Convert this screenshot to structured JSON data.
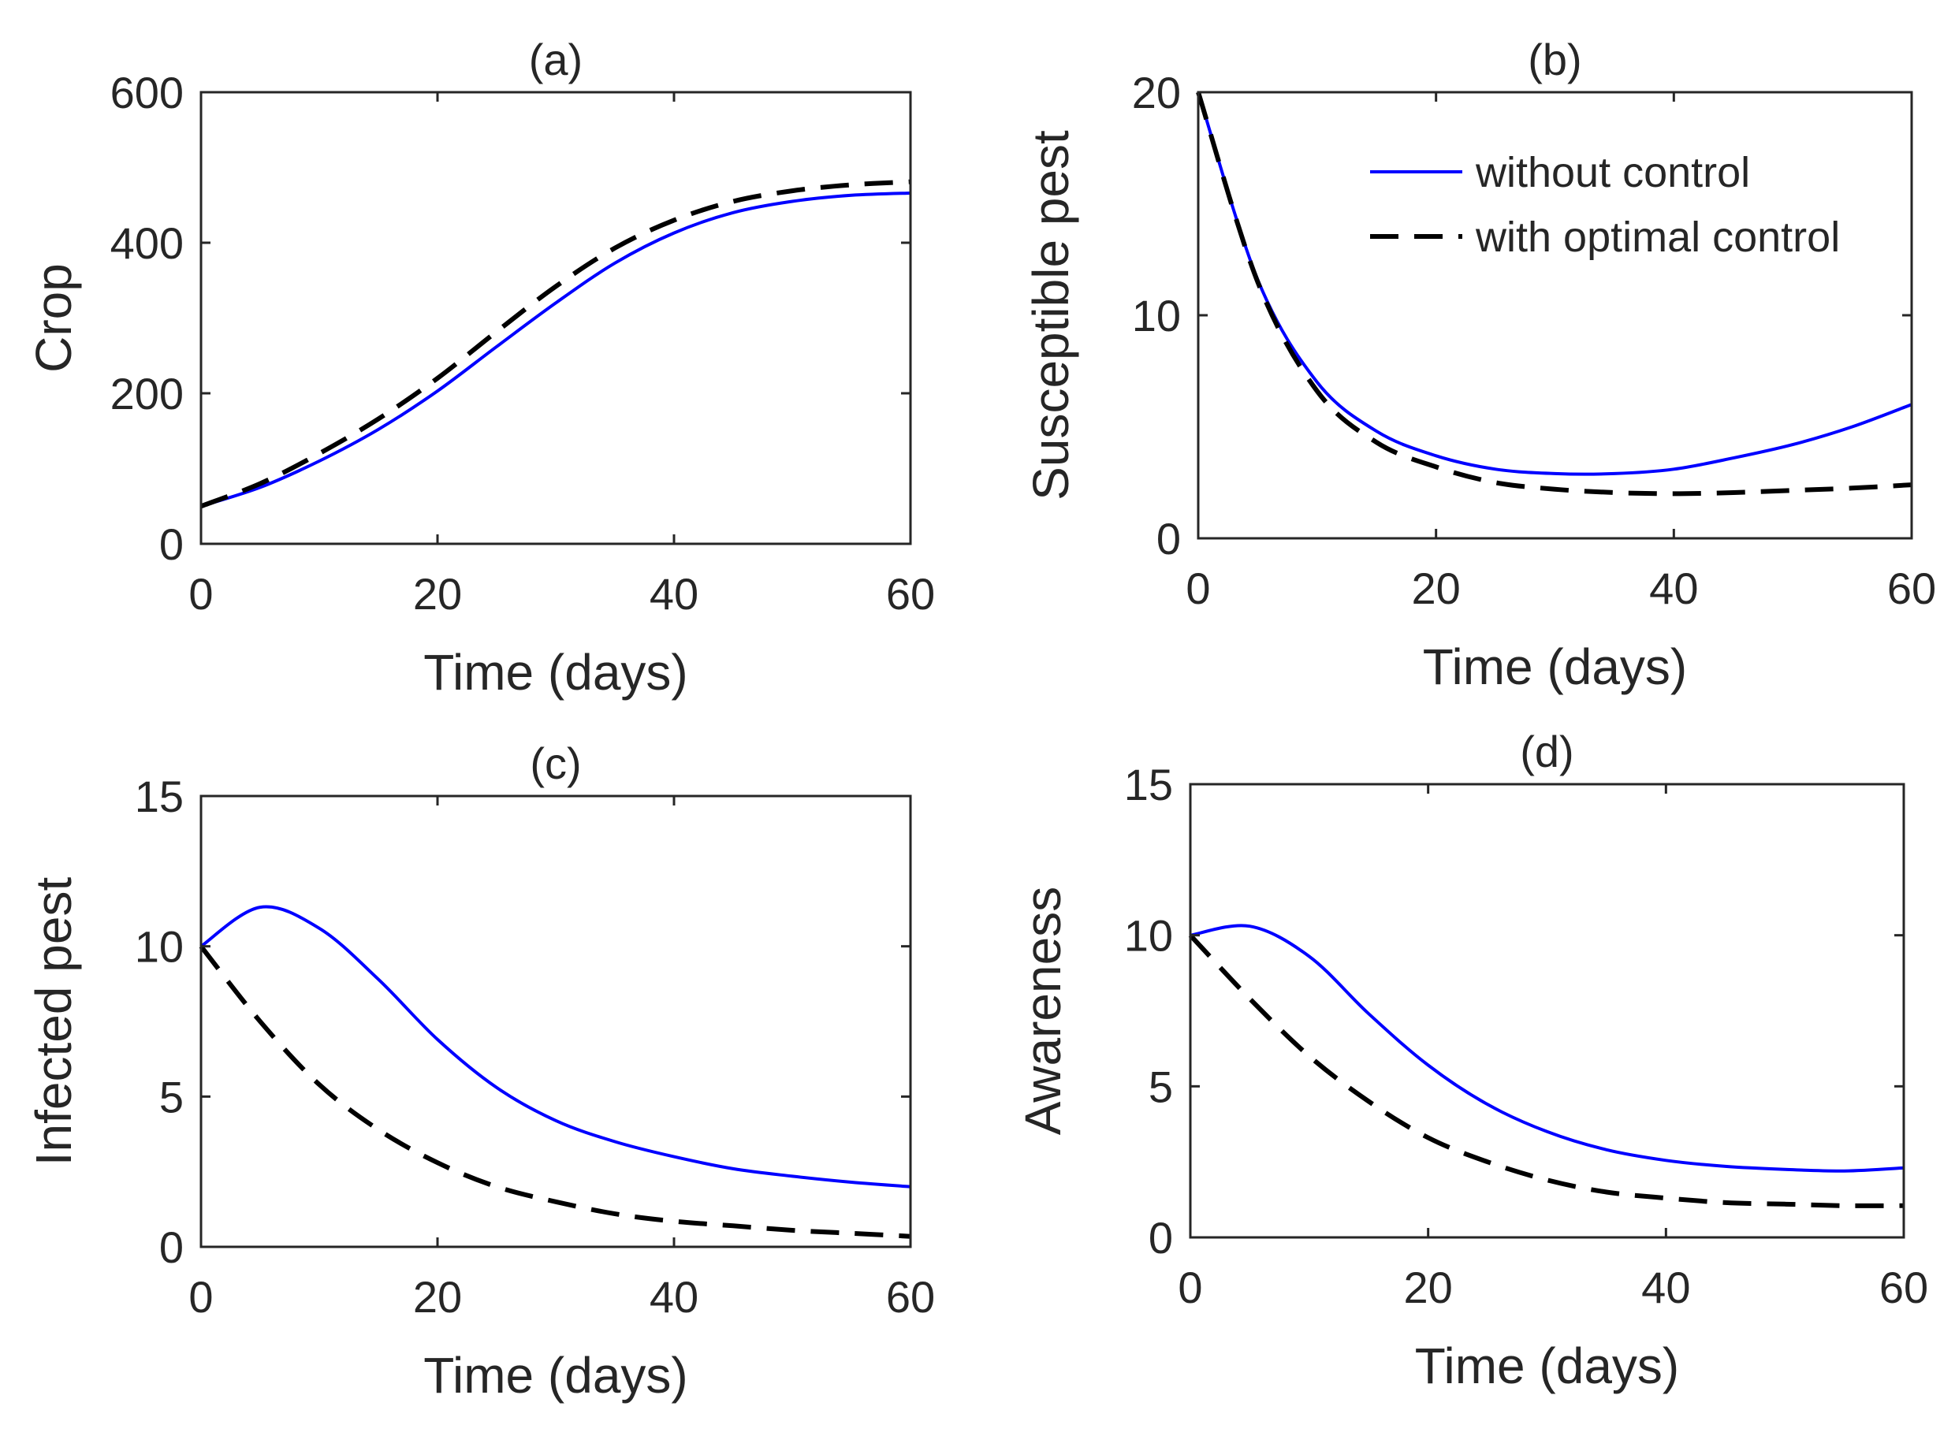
{
  "figure": {
    "legend": {
      "placement": "top-right of panel (b)",
      "entries": [
        {
          "label": "without control",
          "color": "#0000ff",
          "dash": "solid"
        },
        {
          "label": "with optimal control",
          "color": "#000000",
          "dash": "dashed"
        }
      ]
    }
  },
  "chart_data": [
    {
      "type": "line",
      "title": "(a)",
      "xlabel": "Time (days)",
      "ylabel": "Crop",
      "xlim": [
        0,
        60
      ],
      "ylim": [
        0,
        600
      ],
      "xticks": [
        "0",
        "20",
        "40",
        "60"
      ],
      "yticks": [
        "0",
        "200",
        "400",
        "600"
      ],
      "x": [
        0,
        5,
        10,
        15,
        20,
        25,
        30,
        35,
        40,
        45,
        50,
        55,
        60
      ],
      "series": [
        {
          "name": "without control",
          "color": "#0000ff",
          "dash": "solid",
          "values": [
            50,
            75,
            110,
            152,
            203,
            262,
            320,
            373,
            413,
            440,
            455,
            463,
            466
          ]
        },
        {
          "name": "with optimal control",
          "color": "#000000",
          "dash": "dashed",
          "values": [
            50,
            80,
            120,
            166,
            220,
            282,
            342,
            393,
            430,
            455,
            469,
            477,
            481
          ]
        }
      ]
    },
    {
      "type": "line",
      "title": "(b)",
      "xlabel": "Time (days)",
      "ylabel": "Susceptible pest",
      "xlim": [
        0,
        60
      ],
      "ylim": [
        0,
        20
      ],
      "xticks": [
        "0",
        "20",
        "40",
        "60"
      ],
      "yticks": [
        "0",
        "10",
        "20"
      ],
      "x": [
        0,
        5,
        10,
        15,
        20,
        25,
        30,
        35,
        40,
        45,
        50,
        55,
        60
      ],
      "series": [
        {
          "name": "without control",
          "color": "#0000ff",
          "dash": "solid",
          "values": [
            20,
            11.6,
            7.0,
            4.8,
            3.7,
            3.1,
            2.9,
            2.9,
            3.1,
            3.6,
            4.2,
            5.0,
            6.0
          ]
        },
        {
          "name": "with optimal control",
          "color": "#000000",
          "dash": "dashed",
          "values": [
            20,
            11.5,
            6.6,
            4.3,
            3.2,
            2.5,
            2.2,
            2.05,
            2.0,
            2.05,
            2.15,
            2.25,
            2.4
          ]
        }
      ]
    },
    {
      "type": "line",
      "title": "(c)",
      "xlabel": "Time (days)",
      "ylabel": "Infected pest",
      "xlim": [
        0,
        60
      ],
      "ylim": [
        0,
        15
      ],
      "xticks": [
        "0",
        "20",
        "40",
        "60"
      ],
      "yticks": [
        "0",
        "5",
        "10",
        "15"
      ],
      "x": [
        0,
        5,
        10,
        15,
        20,
        25,
        30,
        35,
        40,
        45,
        50,
        55,
        60
      ],
      "series": [
        {
          "name": "without control",
          "color": "#0000ff",
          "dash": "solid",
          "values": [
            10,
            11.3,
            10.6,
            8.9,
            6.9,
            5.3,
            4.2,
            3.5,
            3.0,
            2.6,
            2.35,
            2.15,
            2.0
          ]
        },
        {
          "name": "with optimal control",
          "color": "#000000",
          "dash": "dashed",
          "values": [
            10,
            7.5,
            5.4,
            3.9,
            2.8,
            2.0,
            1.5,
            1.1,
            0.85,
            0.7,
            0.55,
            0.45,
            0.35
          ]
        }
      ]
    },
    {
      "type": "line",
      "title": "(d)",
      "xlabel": "Time (days)",
      "ylabel": "Awareness",
      "xlim": [
        0,
        60
      ],
      "ylim": [
        0,
        15
      ],
      "xticks": [
        "0",
        "20",
        "40",
        "60"
      ],
      "yticks": [
        "0",
        "5",
        "10",
        "15"
      ],
      "x": [
        0,
        5,
        10,
        15,
        20,
        25,
        30,
        35,
        40,
        45,
        50,
        55,
        60
      ],
      "series": [
        {
          "name": "without control",
          "color": "#0000ff",
          "dash": "solid",
          "values": [
            10,
            10.3,
            9.3,
            7.4,
            5.7,
            4.4,
            3.5,
            2.9,
            2.55,
            2.35,
            2.25,
            2.2,
            2.3
          ]
        },
        {
          "name": "with optimal control",
          "color": "#000000",
          "dash": "dashed",
          "values": [
            10,
            7.9,
            6.0,
            4.5,
            3.3,
            2.5,
            1.9,
            1.5,
            1.3,
            1.15,
            1.1,
            1.05,
            1.05
          ]
        }
      ]
    }
  ]
}
